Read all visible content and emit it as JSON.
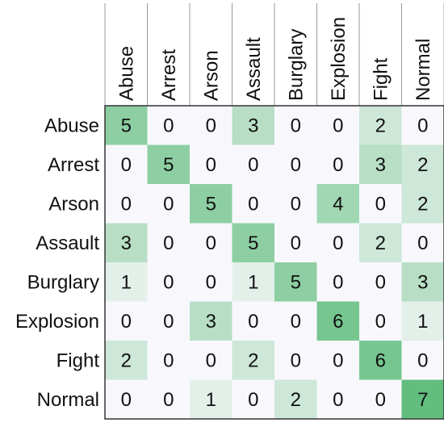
{
  "chart_data": {
    "type": "heatmap",
    "title": "",
    "xlabel": "",
    "ylabel": "",
    "columns": [
      "Abuse",
      "Arrest",
      "Arson",
      "Assault",
      "Burglary",
      "Explosion",
      "Fight",
      "Normal"
    ],
    "rows": [
      "Abuse",
      "Arrest",
      "Arson",
      "Assault",
      "Burglary",
      "Explosion",
      "Fight",
      "Normal"
    ],
    "values": [
      [
        5,
        0,
        0,
        3,
        0,
        0,
        2,
        0
      ],
      [
        0,
        5,
        0,
        0,
        0,
        0,
        3,
        2
      ],
      [
        0,
        0,
        5,
        0,
        0,
        4,
        0,
        2
      ],
      [
        3,
        0,
        0,
        5,
        0,
        0,
        2,
        0
      ],
      [
        1,
        0,
        0,
        1,
        5,
        0,
        0,
        3
      ],
      [
        0,
        0,
        3,
        0,
        0,
        6,
        0,
        1
      ],
      [
        2,
        0,
        0,
        2,
        0,
        0,
        6,
        0
      ],
      [
        0,
        0,
        1,
        0,
        2,
        0,
        0,
        7
      ]
    ],
    "value_range": [
      0,
      7
    ],
    "colors": {
      "low": "#f8f8fc",
      "high": "#62be7e",
      "border": "#333333"
    },
    "grid": false,
    "legend": "none"
  }
}
